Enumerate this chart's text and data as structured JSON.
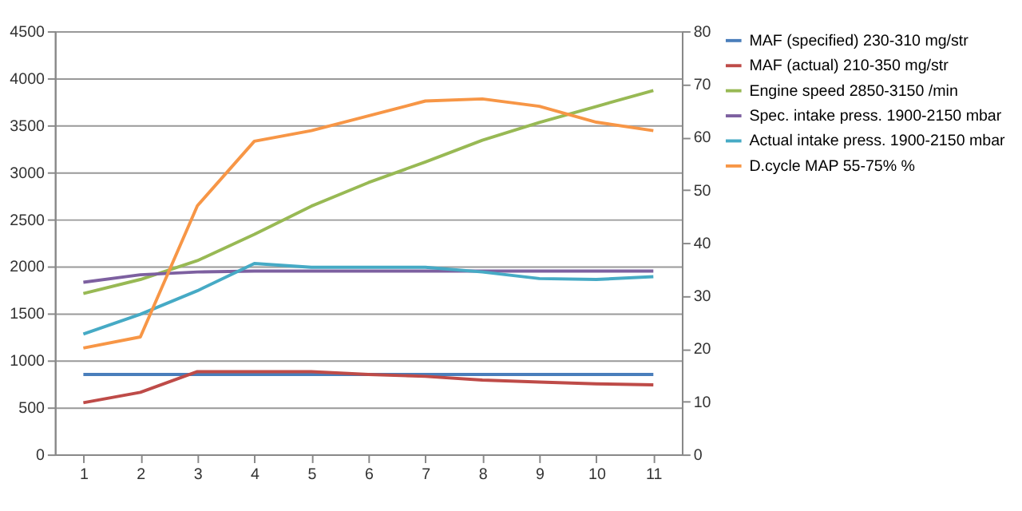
{
  "chart_data": {
    "type": "line",
    "categories": [
      "1",
      "2",
      "3",
      "4",
      "5",
      "6",
      "7",
      "8",
      "9",
      "10",
      "11"
    ],
    "series": [
      {
        "name": "MAF (specified) 230-310  mg/str",
        "color": "#4a7ebb",
        "values": [
          850,
          850,
          850,
          850,
          850,
          850,
          850,
          850,
          850,
          850,
          850
        ]
      },
      {
        "name": "MAF (actual) 210-350  mg/str",
        "color": "#be4b48",
        "values": [
          550,
          660,
          880,
          880,
          880,
          850,
          830,
          790,
          770,
          750,
          740
        ]
      },
      {
        "name": "Engine speed 2850-3150  /min",
        "color": "#98b954",
        "values": [
          1710,
          1860,
          2060,
          2340,
          2640,
          2890,
          3110,
          3340,
          3530,
          3700,
          3870
        ]
      },
      {
        "name": "Spec. intake press. 1900-2150  mbar",
        "color": "#7d60a0",
        "values": [
          1830,
          1910,
          1940,
          1950,
          1950,
          1950,
          1950,
          1950,
          1950,
          1950,
          1950
        ]
      },
      {
        "name": "Actual intake  press. 1900-2150  mbar",
        "color": "#46aac5",
        "values": [
          1280,
          1490,
          1740,
          2030,
          1990,
          1990,
          1990,
          1940,
          1870,
          1860,
          1890
        ]
      },
      {
        "name": "D.cycle MAP 55-75% %",
        "color": "#f79646",
        "axis": "y2",
        "values": [
          20.1,
          22.2,
          47,
          59.2,
          61.2,
          64,
          66.8,
          67.2,
          65.8,
          62.8,
          61.2
        ]
      }
    ],
    "ylim": [
      0,
      4500
    ],
    "yticks": [
      0,
      500,
      1000,
      1500,
      2000,
      2500,
      3000,
      3500,
      4000,
      4500
    ],
    "y2lim": [
      0,
      80
    ],
    "y2ticks": [
      0,
      10,
      20,
      30,
      40,
      50,
      60,
      70,
      80
    ],
    "grid": "y",
    "legend": "right",
    "marker": "none",
    "line_style": "solid"
  }
}
